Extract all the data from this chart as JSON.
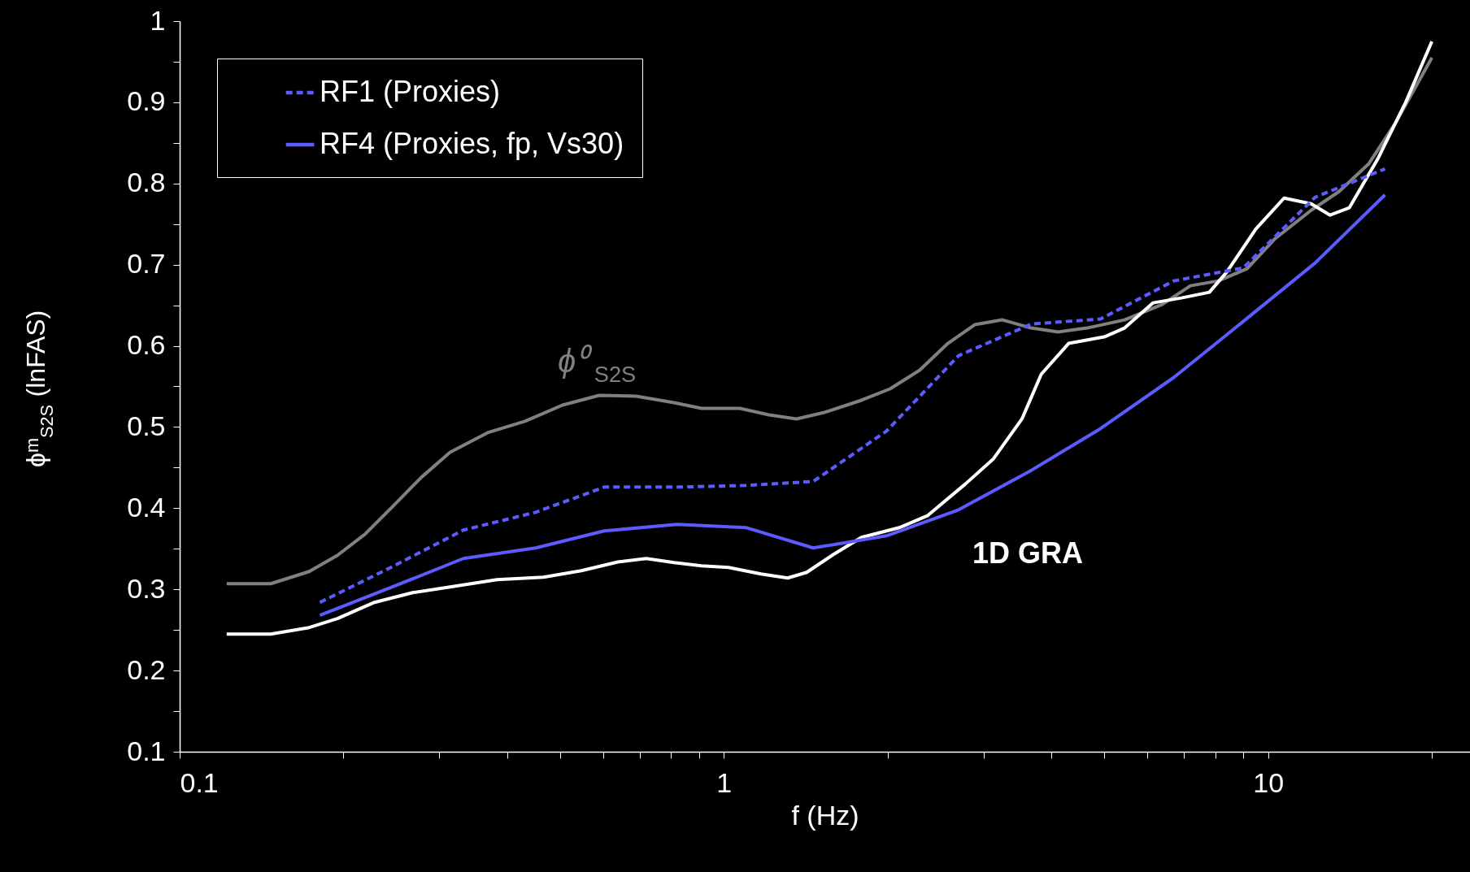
{
  "chart_data": {
    "type": "line",
    "xlabel": "f (Hz)",
    "ylabel": "ϕᵐ$_{S2S}$ (lnFAS)",
    "log": "x",
    "grid": false,
    "legend": "top left",
    "marker": "none",
    "xlim": [
      0.1,
      23.5
    ],
    "ylim": [
      0.1,
      1
    ],
    "xticks": [
      0.1,
      {
        "value": 0.2,
        "label": null
      },
      {
        "value": 0.3,
        "label": null
      },
      {
        "value": 0.4,
        "label": null
      },
      {
        "value": 0.5,
        "label": null
      },
      {
        "value": 0.6,
        "label": null
      },
      {
        "value": 0.7,
        "label": null
      },
      {
        "value": 0.8,
        "label": null
      },
      {
        "value": 0.9,
        "label": null
      },
      1,
      {
        "value": 2,
        "label": null
      },
      {
        "value": 3,
        "label": null
      },
      {
        "value": 4,
        "label": null
      },
      {
        "value": 5,
        "label": null
      },
      {
        "value": 6,
        "label": null
      },
      {
        "value": 7,
        "label": null
      },
      {
        "value": 8,
        "label": null
      },
      {
        "value": 9,
        "label": null
      },
      10,
      {
        "value": 20,
        "label": null
      }
    ],
    "yticks": [
      0.1,
      {
        "value": 0.15,
        "label": null
      },
      0.2,
      {
        "value": 0.25,
        "label": null
      },
      0.3,
      {
        "value": 0.35,
        "label": null
      },
      0.4,
      {
        "value": 0.45,
        "label": null
      },
      0.5,
      {
        "value": 0.55,
        "label": null
      },
      0.6,
      {
        "value": 0.65,
        "label": null
      },
      0.7,
      {
        "value": 0.75,
        "label": null
      },
      0.8,
      {
        "value": 0.85,
        "label": null
      },
      0.9,
      {
        "value": 0.95,
        "label": null
      },
      1
    ],
    "series": [
      {
        "color": "#808080",
        "line_style": "solid",
        "x": [
          0.122,
          0.147,
          0.173,
          0.195,
          0.219,
          0.247,
          0.278,
          0.314,
          0.368,
          0.431,
          0.505,
          0.59,
          0.69,
          0.81,
          0.91,
          1.07,
          1.21,
          1.36,
          1.53,
          1.79,
          2.02,
          2.29,
          2.58,
          2.89,
          3.25,
          3.67,
          4.11,
          4.65,
          5.45,
          6.39,
          7.2,
          8.1,
          9.15,
          10.3,
          12.0,
          13.5,
          15.3,
          17.2,
          20.0
        ],
        "values": [
          0.307,
          0.307,
          0.322,
          0.342,
          0.368,
          0.403,
          0.438,
          0.469,
          0.493,
          0.507,
          0.527,
          0.539,
          0.538,
          0.53,
          0.523,
          0.523,
          0.515,
          0.51,
          0.518,
          0.533,
          0.547,
          0.57,
          0.603,
          0.626,
          0.632,
          0.622,
          0.617,
          0.622,
          0.632,
          0.651,
          0.674,
          0.68,
          0.695,
          0.732,
          0.767,
          0.79,
          0.824,
          0.876,
          0.955
        ]
      },
      {
        "color": "#ffffff",
        "line_style": "solid",
        "x": [
          0.122,
          0.147,
          0.173,
          0.195,
          0.228,
          0.268,
          0.314,
          0.383,
          0.466,
          0.547,
          0.641,
          0.72,
          0.81,
          0.91,
          1.02,
          1.17,
          1.31,
          1.42,
          1.59,
          1.79,
          2.1,
          2.37,
          2.78,
          3.13,
          3.53,
          3.83,
          4.3,
          5.0,
          5.45,
          6.15,
          6.93,
          7.8,
          8.4,
          9.5,
          10.7,
          12.0,
          13.0,
          14.1,
          15.9,
          17.9,
          20.0
        ],
        "values": [
          0.245,
          0.245,
          0.253,
          0.264,
          0.284,
          0.296,
          0.303,
          0.312,
          0.315,
          0.323,
          0.334,
          0.338,
          0.333,
          0.329,
          0.327,
          0.319,
          0.314,
          0.321,
          0.343,
          0.364,
          0.376,
          0.391,
          0.43,
          0.461,
          0.51,
          0.565,
          0.603,
          0.611,
          0.622,
          0.653,
          0.659,
          0.666,
          0.691,
          0.744,
          0.782,
          0.775,
          0.761,
          0.77,
          0.83,
          0.9,
          0.975
        ]
      },
      {
        "name": "RF1 (Proxies)",
        "color": "#5b5bff",
        "line_style": "dashed",
        "x": [
          0.181,
          0.246,
          0.332,
          0.451,
          0.603,
          0.82,
          1.1,
          1.46,
          1.99,
          2.7,
          3.68,
          4.92,
          6.71,
          9.0,
          12.2,
          16.4
        ],
        "values": [
          0.284,
          0.328,
          0.373,
          0.395,
          0.426,
          0.426,
          0.428,
          0.433,
          0.495,
          0.588,
          0.627,
          0.633,
          0.68,
          0.696,
          0.783,
          0.818
        ]
      },
      {
        "name": "RF4 (Proxies, fp, Vs30)",
        "color": "#5b5bff",
        "line_style": "solid",
        "x": [
          0.181,
          0.246,
          0.332,
          0.451,
          0.603,
          0.82,
          1.1,
          1.46,
          1.99,
          2.7,
          3.68,
          4.92,
          6.71,
          9.0,
          12.2,
          16.4
        ],
        "values": [
          0.268,
          0.303,
          0.338,
          0.351,
          0.372,
          0.38,
          0.376,
          0.351,
          0.366,
          0.398,
          0.447,
          0.498,
          0.561,
          0.63,
          0.702,
          0.786
        ]
      }
    ],
    "annotations": [
      "ϕ⁰$_{S2S}$",
      "1D GRA"
    ]
  }
}
